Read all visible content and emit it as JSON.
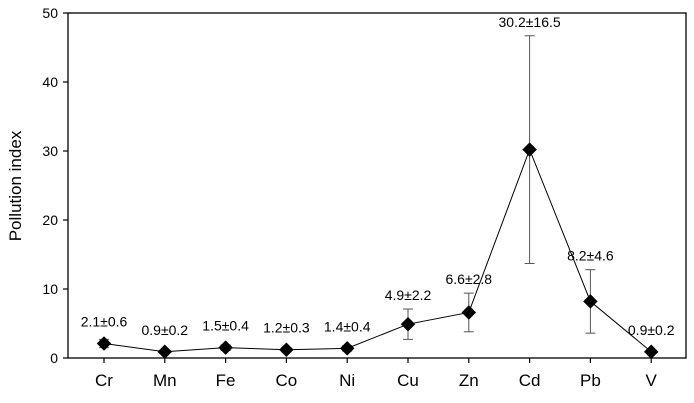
{
  "chart_data": {
    "type": "line",
    "title": "",
    "xlabel": "",
    "ylabel": "Pollution index",
    "ylim": [
      0,
      50
    ],
    "yticks": [
      "0",
      "10",
      "20",
      "30",
      "40",
      "50"
    ],
    "grid": false,
    "legend": "none",
    "categories": [
      "Cr",
      "Mn",
      "Fe",
      "Co",
      "Ni",
      "Cu",
      "Zn",
      "Cd",
      "Pb",
      "V"
    ],
    "series": [
      {
        "values": [
          2.1,
          0.9,
          1.5,
          1.2,
          1.4,
          4.9,
          6.6,
          30.2,
          8.2,
          0.9
        ],
        "errors": [
          0.6,
          0.2,
          0.4,
          0.3,
          0.4,
          2.2,
          2.8,
          16.5,
          4.6,
          0.2
        ],
        "labels": [
          "2.1±0.6",
          "0.9±0.2",
          "1.5±0.4",
          "1.2±0.3",
          "1.4±0.4",
          "4.9±2.2",
          "6.6±2.8",
          "30.2±16.5",
          "8.2±4.6",
          "0.9±0.2"
        ],
        "color": "#000000",
        "marker": "diamond"
      }
    ]
  }
}
